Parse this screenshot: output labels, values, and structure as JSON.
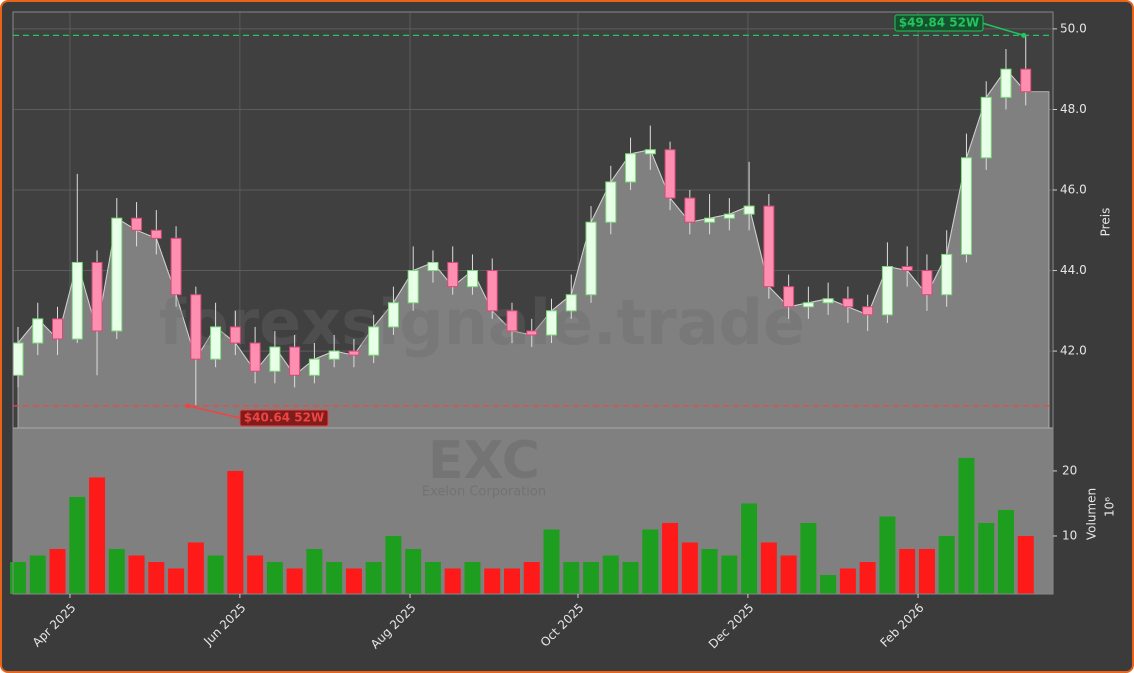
{
  "chart_data": {
    "type": "candlestick",
    "x": [
      0,
      1,
      2,
      3,
      4,
      5,
      6,
      7,
      8,
      9,
      10,
      11,
      12,
      13,
      14,
      15,
      16,
      17,
      18,
      19,
      20,
      21,
      22,
      23,
      24,
      25,
      26,
      27,
      28,
      29,
      30,
      31,
      32,
      33,
      34,
      35,
      36,
      37,
      38,
      39,
      40,
      41,
      42,
      43,
      44,
      45,
      46,
      47,
      48,
      49,
      50,
      51
    ],
    "open": [
      41.4,
      42.2,
      42.8,
      42.3,
      44.2,
      42.5,
      45.3,
      45.0,
      44.8,
      43.4,
      41.8,
      42.6,
      42.2,
      41.5,
      42.1,
      41.4,
      41.8,
      42.0,
      41.9,
      42.6,
      43.2,
      44.0,
      44.2,
      43.6,
      44.0,
      43.0,
      42.5,
      42.4,
      43.0,
      43.4,
      45.2,
      46.2,
      46.9,
      47.0,
      45.8,
      45.2,
      45.3,
      45.4,
      45.6,
      43.6,
      43.1,
      43.2,
      43.3,
      43.1,
      42.9,
      44.1,
      44.0,
      43.4,
      44.4,
      46.8,
      48.3,
      49.0
    ],
    "high": [
      42.6,
      43.2,
      43.1,
      46.4,
      44.5,
      45.8,
      45.7,
      45.5,
      45.1,
      43.6,
      43.2,
      43.0,
      42.6,
      42.5,
      42.4,
      42.2,
      42.4,
      42.3,
      42.9,
      43.6,
      44.6,
      44.5,
      44.6,
      44.4,
      44.3,
      43.2,
      42.8,
      43.3,
      43.9,
      45.6,
      46.6,
      47.3,
      47.6,
      47.2,
      46.0,
      45.9,
      45.8,
      46.7,
      45.9,
      43.9,
      43.6,
      43.7,
      43.6,
      43.4,
      44.7,
      44.6,
      44.4,
      45.0,
      47.4,
      48.7,
      49.5,
      49.84
    ],
    "low": [
      41.1,
      41.9,
      41.9,
      42.2,
      41.4,
      42.3,
      44.6,
      44.4,
      43.1,
      40.64,
      41.6,
      41.9,
      41.2,
      41.2,
      41.1,
      41.2,
      41.6,
      41.6,
      41.7,
      42.4,
      43.0,
      43.7,
      43.4,
      43.4,
      42.8,
      42.2,
      42.1,
      42.2,
      42.8,
      43.2,
      44.9,
      46.0,
      46.5,
      45.5,
      44.9,
      44.9,
      45.0,
      45.0,
      43.3,
      42.8,
      42.8,
      42.9,
      42.7,
      42.5,
      42.7,
      43.6,
      43.0,
      43.1,
      44.2,
      46.5,
      48.0,
      48.1
    ],
    "close": [
      42.2,
      42.8,
      42.3,
      44.2,
      42.5,
      45.3,
      45.0,
      44.8,
      43.4,
      41.8,
      42.6,
      42.2,
      41.5,
      42.1,
      41.4,
      41.8,
      42.0,
      41.9,
      42.6,
      43.2,
      44.0,
      44.2,
      43.6,
      44.0,
      43.0,
      42.5,
      42.4,
      43.0,
      43.4,
      45.2,
      46.2,
      46.9,
      47.0,
      45.8,
      45.2,
      45.3,
      45.4,
      45.6,
      43.6,
      43.1,
      43.2,
      43.3,
      43.1,
      42.9,
      44.1,
      44.0,
      43.4,
      44.4,
      46.8,
      48.3,
      49.0,
      48.44
    ],
    "volume": [
      6,
      7,
      8,
      16,
      19,
      8,
      7,
      6,
      5,
      9,
      7,
      20,
      7,
      6,
      5,
      8,
      6,
      5,
      6,
      10,
      8,
      6,
      5,
      6,
      5,
      5,
      6,
      11,
      6,
      6,
      7,
      6,
      11,
      12,
      9,
      8,
      7,
      15,
      9,
      7,
      12,
      4,
      5,
      6,
      13,
      8,
      8,
      10,
      22,
      12,
      14,
      10
    ],
    "up_color": "#1e9e1e",
    "down_color": "#ff1a1a",
    "area_color": "#808080",
    "xlim": [
      -0.253,
      52.38
    ],
    "xticks": [
      {
        "value": 2.63,
        "label": "Apr 2025"
      },
      {
        "value": 11.23,
        "label": "Jun 2025"
      },
      {
        "value": 19.84,
        "label": "Aug 2025"
      },
      {
        "value": 28.34,
        "label": "Oct 2025"
      },
      {
        "value": 36.94,
        "label": "Dec 2025"
      },
      {
        "value": 45.55,
        "label": "Feb 2026"
      }
    ],
    "ylim": [
      40.09,
      50.42
    ],
    "yticks": [
      {
        "value": 42,
        "label": "42.0"
      },
      {
        "value": 44,
        "label": "44.0"
      },
      {
        "value": 46,
        "label": "46.0"
      },
      {
        "value": 48,
        "label": "48.0"
      },
      {
        "value": 50,
        "label": "50.0"
      }
    ],
    "ylabel": "Preis",
    "volume_ylim": [
      1.08,
      26.6
    ],
    "volume_yticks": [
      10,
      20
    ],
    "volume_ylabel": "Volumen",
    "volume_multiplier": "10⁶",
    "grid": true,
    "annotations": [
      {
        "text": "$49.84 52W",
        "value": 49.84,
        "color": "#22c55e"
      },
      {
        "text": "$40.64 52W",
        "value": 40.64,
        "color": "#ef4444"
      }
    ],
    "watermarks": [
      "forexsignale.trade",
      "EXC",
      "Exelon Corporation"
    ]
  }
}
